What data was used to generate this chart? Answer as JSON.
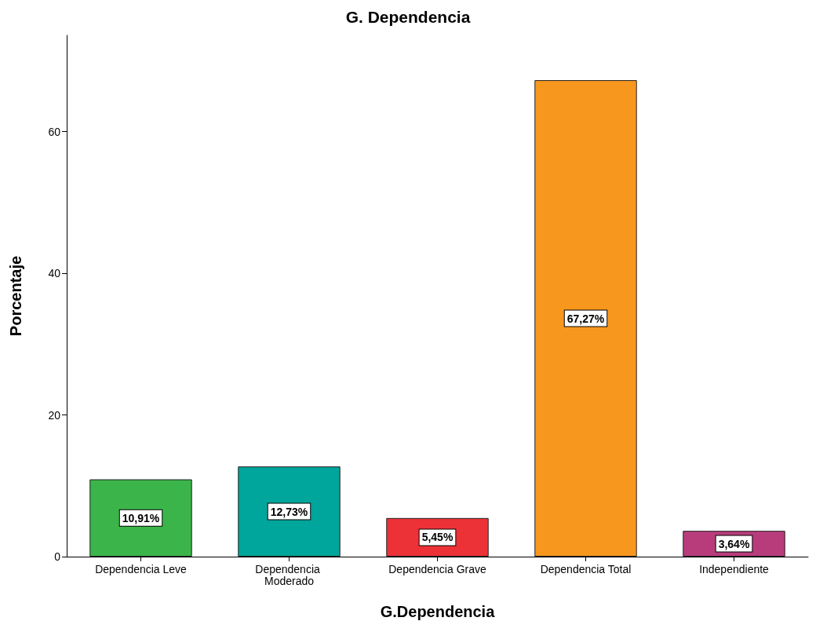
{
  "chart_data": {
    "type": "bar",
    "title": "G. Dependencia",
    "xlabel": "G.Dependencia",
    "ylabel": "Porcentaje",
    "categories": [
      "Dependencia Leve",
      "Dependencia Moderado",
      "Dependencia Grave",
      "Dependencia Total",
      "Independiente"
    ],
    "values": [
      10.91,
      12.73,
      5.45,
      67.27,
      3.64
    ],
    "colors": [
      "#3bb54a",
      "#00a59b",
      "#ec3237",
      "#f7971e",
      "#b83c7c"
    ],
    "value_labels": [
      "10,91%",
      "12,73%",
      "5,45%",
      "67,27%",
      "3,64%"
    ],
    "ylim": [
      0,
      73.6
    ],
    "yticks": [
      0,
      20,
      40,
      60
    ]
  }
}
